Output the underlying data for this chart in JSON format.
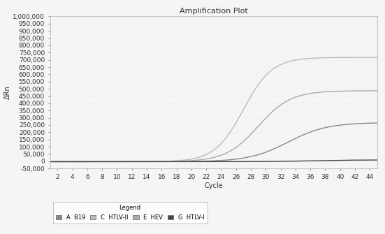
{
  "title": "Amplification Plot",
  "xlabel": "Cycle",
  "ylabel": "ΔRn",
  "xlim": [
    1,
    45
  ],
  "ylim": [
    -50000,
    1000000
  ],
  "yticks": [
    -50000,
    0,
    50000,
    100000,
    150000,
    200000,
    250000,
    300000,
    350000,
    400000,
    450000,
    500000,
    550000,
    600000,
    650000,
    700000,
    750000,
    800000,
    850000,
    900000,
    950000,
    1000000
  ],
  "xticks": [
    2,
    4,
    6,
    8,
    10,
    12,
    14,
    16,
    18,
    20,
    22,
    24,
    26,
    28,
    30,
    32,
    34,
    36,
    38,
    40,
    42,
    44
  ],
  "series": [
    {
      "label": "A  B19",
      "color": "#888888",
      "plateau": 270000,
      "midpoint": 33,
      "steepness": 0.38,
      "baseline": -3000
    },
    {
      "label": "C  HTLV-II",
      "color": "#bbbbbb",
      "plateau": 720000,
      "midpoint": 27,
      "steepness": 0.52,
      "baseline": -3000
    },
    {
      "label": "E  HEV",
      "color": "#aaaaaa",
      "plateau": 490000,
      "midpoint": 29,
      "steepness": 0.46,
      "baseline": -3000
    },
    {
      "label": "G  HTLV-I",
      "color": "#444444",
      "plateau": 12000,
      "midpoint": 36,
      "steepness": 0.35,
      "baseline": -3000
    }
  ],
  "legend_title": "Legend",
  "background_color": "#f5f5f5",
  "plot_background": "#f5f5f5",
  "grid_color": "#e8e8e8",
  "title_fontsize": 8,
  "axis_fontsize": 7,
  "tick_fontsize": 6.5
}
